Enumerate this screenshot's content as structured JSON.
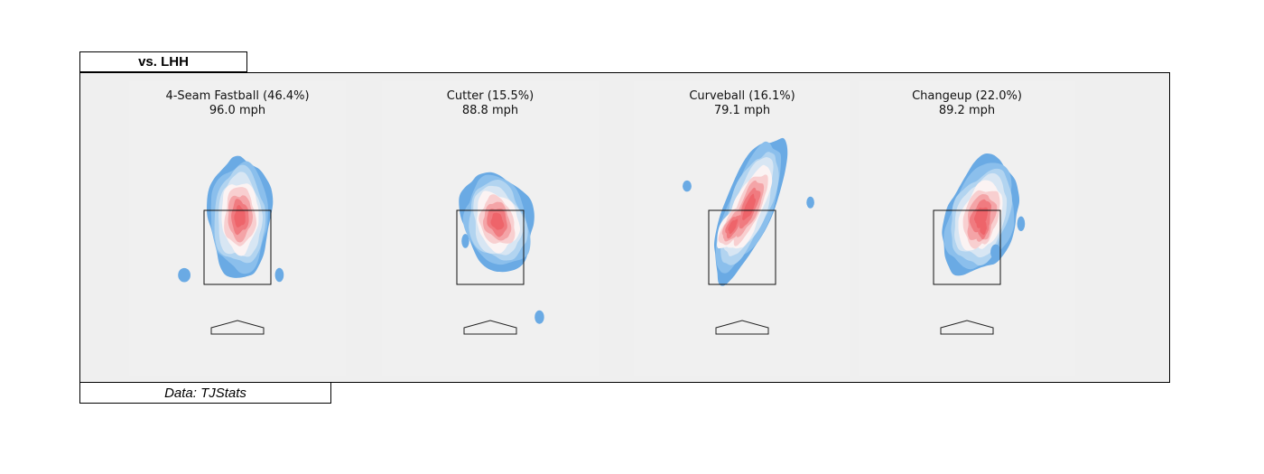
{
  "header_tab": "vs. LHH",
  "footer_tab": "Data: TJStats",
  "chart_data": {
    "type": "heatmap",
    "subtype": "pitch-location-density",
    "colors": {
      "levels": [
        "#6aaae4",
        "#8bbfec",
        "#b2d4f0",
        "#d8e6f3",
        "#fbf3f3",
        "#f8cfd0",
        "#f4a4a7",
        "#f07b80",
        "#ee646a"
      ],
      "panel_bg": "#efefef",
      "plot_bg": "#f0f0f0"
    },
    "pitches": [
      {
        "name": "4-Seam Fastball (46.4%)",
        "speed": "96.0 mph",
        "peak_level": 8,
        "clusters": [
          {
            "x": 0.05,
            "y": 0.65,
            "w": 0.5,
            "h": 0.95,
            "angle": 0
          }
        ]
      },
      {
        "name": "Cutter (15.5%)",
        "speed": "88.8 mph",
        "peak_level": 8,
        "clusters": [
          {
            "x": 0.15,
            "y": 0.55,
            "w": 0.55,
            "h": 0.8,
            "angle": -15
          }
        ]
      },
      {
        "name": "Curveball (16.1%)",
        "speed": "79.1 mph",
        "peak_level": 8,
        "clusters": [
          {
            "x": 0.15,
            "y": 0.85,
            "w": 0.38,
            "h": 1.2,
            "angle": 22
          },
          {
            "x": -0.2,
            "y": 0.45,
            "w": 0.3,
            "h": 0.7,
            "angle": 28
          }
        ]
      },
      {
        "name": "Changeup (22.0%)",
        "speed": "89.2 mph",
        "peak_level": 8,
        "clusters": [
          {
            "x": 0.3,
            "y": 0.65,
            "w": 0.55,
            "h": 0.95,
            "angle": 18
          },
          {
            "x": 0.35,
            "y": 0.4,
            "w": 0.3,
            "h": 0.55,
            "angle": 10
          }
        ]
      }
    ]
  }
}
